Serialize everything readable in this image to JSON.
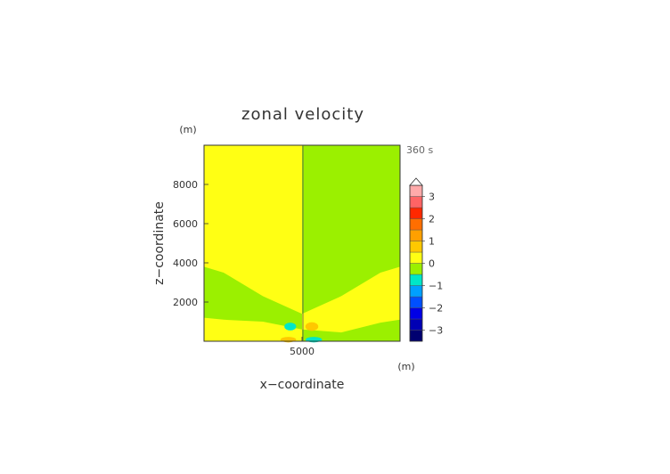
{
  "chart_data": {
    "type": "heatmap",
    "title": "zonal velocity",
    "xlabel": "x−coordinate",
    "ylabel": "z−coordinate",
    "x_unit": "(m)",
    "y_unit": "(m)",
    "time_label": "360 s",
    "xlim": [
      0,
      10000
    ],
    "ylim": [
      0,
      10000
    ],
    "x_ticks": [
      {
        "value": 5000,
        "label": "5000"
      }
    ],
    "y_ticks": [
      {
        "value": 2000,
        "label": "2000"
      },
      {
        "value": 4000,
        "label": "4000"
      },
      {
        "value": 6000,
        "label": "6000"
      },
      {
        "value": 8000,
        "label": "8000"
      }
    ],
    "colorbar": {
      "min": -3.5,
      "max": 3.5,
      "extend_max": true,
      "bands": [
        {
          "from": -3.5,
          "to": -3.0,
          "color": "#000070"
        },
        {
          "from": -3.0,
          "to": -2.5,
          "color": "#0000b4"
        },
        {
          "from": -2.5,
          "to": -2.0,
          "color": "#0000e6"
        },
        {
          "from": -2.0,
          "to": -1.5,
          "color": "#0050ff"
        },
        {
          "from": -1.5,
          "to": -1.0,
          "color": "#00a0ff"
        },
        {
          "from": -1.0,
          "to": -0.5,
          "color": "#00e6c8"
        },
        {
          "from": -0.5,
          "to": 0.0,
          "color": "#9bf000"
        },
        {
          "from": 0.0,
          "to": 0.5,
          "color": "#ffff14"
        },
        {
          "from": 0.5,
          "to": 1.0,
          "color": "#ffc800"
        },
        {
          "from": 1.0,
          "to": 1.5,
          "color": "#ffa000"
        },
        {
          "from": 1.5,
          "to": 2.0,
          "color": "#ff6e00"
        },
        {
          "from": 2.0,
          "to": 2.5,
          "color": "#ff2800"
        },
        {
          "from": 2.5,
          "to": 3.0,
          "color": "#ff6464"
        },
        {
          "from": 3.0,
          "to": 3.5,
          "color": "#ffaaaa"
        }
      ],
      "ticks": [
        {
          "value": 3,
          "label": "3"
        },
        {
          "value": 2,
          "label": "2"
        },
        {
          "value": 1,
          "label": "1"
        },
        {
          "value": 0,
          "label": "0"
        },
        {
          "value": -1,
          "label": "−1"
        },
        {
          "value": -2,
          "label": "−2"
        },
        {
          "value": -3,
          "label": "−3"
        }
      ]
    },
    "field": {
      "background_value": 0.25,
      "regions": [
        {
          "name": "upper-right",
          "value": -0.25,
          "polygon": [
            [
              5000,
              10000
            ],
            [
              10000,
              10000
            ],
            [
              10000,
              3800
            ],
            [
              9000,
              3500
            ],
            [
              7000,
              2300
            ],
            [
              5000,
              1400
            ]
          ]
        },
        {
          "name": "left-wedge",
          "value": -0.25,
          "polygon": [
            [
              0,
              3800
            ],
            [
              1000,
              3500
            ],
            [
              3000,
              2300
            ],
            [
              5000,
              1400
            ],
            [
              5000,
              600
            ],
            [
              3000,
              1000
            ],
            [
              1000,
              1100
            ],
            [
              0,
              1200
            ]
          ]
        },
        {
          "name": "right-lower-band",
          "value": -0.25,
          "polygon": [
            [
              5000,
              600
            ],
            [
              7000,
              450
            ],
            [
              9000,
              950
            ],
            [
              10000,
              1100
            ],
            [
              10000,
              0
            ],
            [
              5000,
              0
            ]
          ]
        },
        {
          "name": "lower-left-neg",
          "value": -0.75,
          "cx": 4400,
          "cy": 750,
          "rx": 300,
          "ry": 200
        },
        {
          "name": "lower-right-pos",
          "value": 0.75,
          "cx": 5500,
          "cy": 750,
          "rx": 330,
          "ry": 220
        },
        {
          "name": "bottom-left-pos",
          "value": 0.75,
          "cx": 4300,
          "cy": 80,
          "rx": 400,
          "ry": 140
        },
        {
          "name": "bottom-right-neg",
          "value": -0.75,
          "cx": 5600,
          "cy": 80,
          "rx": 420,
          "ry": 140
        }
      ]
    }
  }
}
